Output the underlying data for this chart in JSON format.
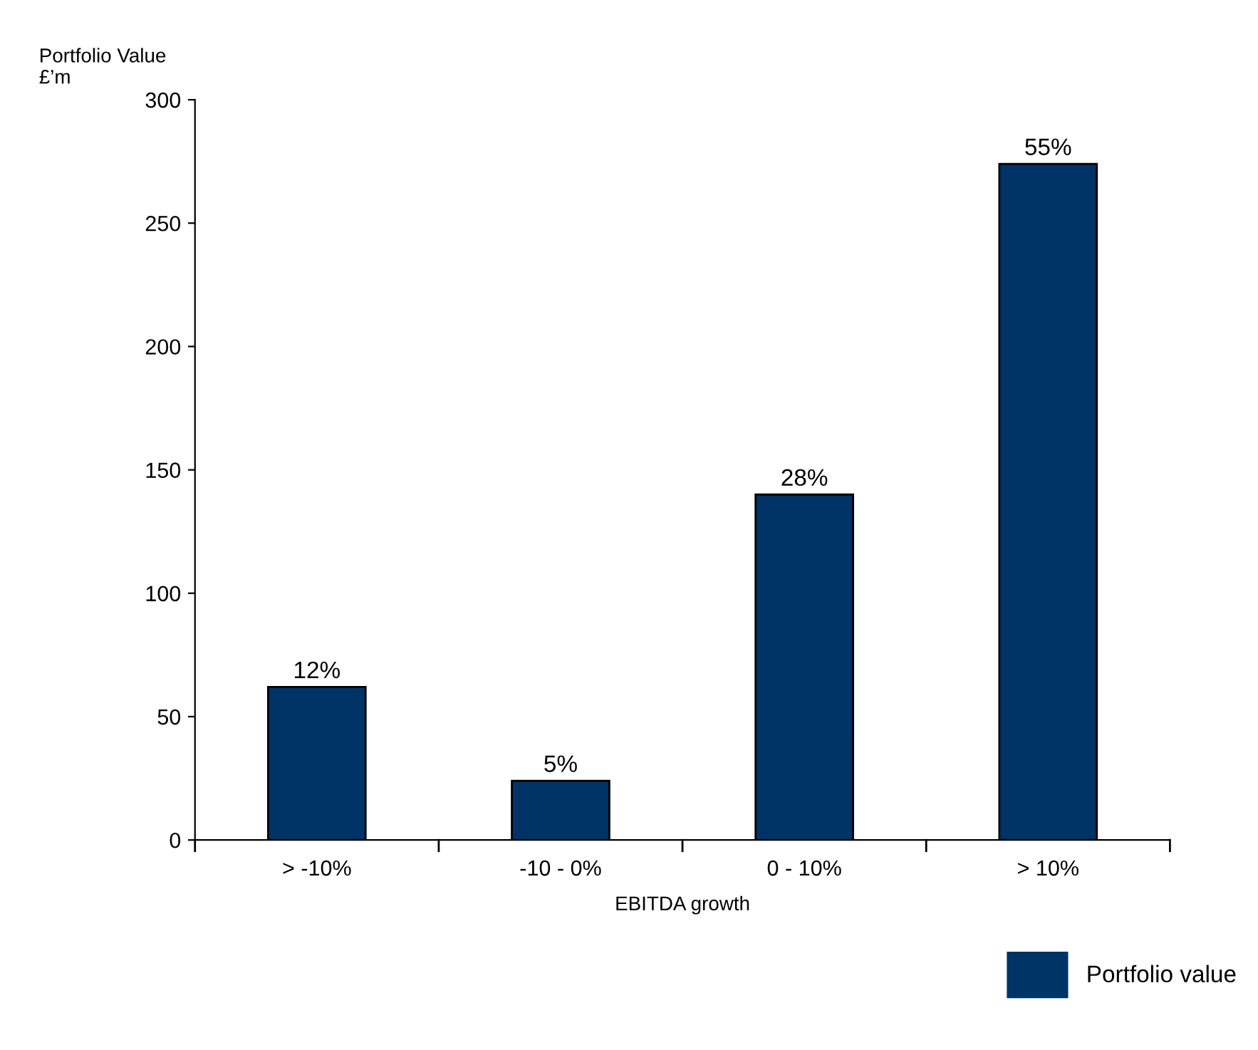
{
  "chart_data": {
    "type": "bar",
    "ylabel": "Portfolio Value\n£’m",
    "xlabel": "EBITDA growth",
    "categories": [
      "> -10%",
      "-10 - 0%",
      "0 - 10%",
      "> 10%"
    ],
    "series": [
      {
        "name": "Portfolio value",
        "color": "#003366",
        "values": [
          62,
          24,
          140,
          274
        ]
      }
    ],
    "value_labels": [
      "12%",
      "5%",
      "28%",
      "55%"
    ],
    "ylim": [
      0,
      300
    ],
    "yticks": [
      0,
      50,
      100,
      150,
      200,
      250,
      300
    ],
    "grid": false,
    "legend": "bottom right"
  }
}
